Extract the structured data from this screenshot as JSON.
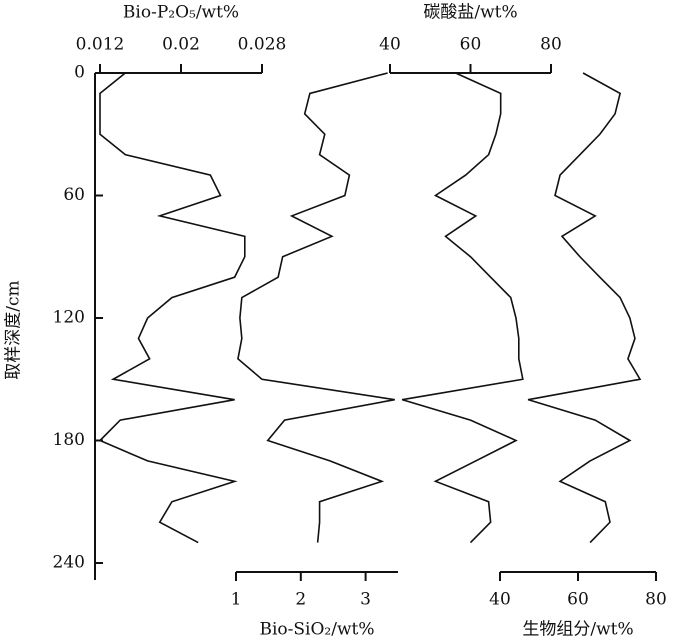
{
  "chart_data": {
    "type": "line",
    "ylabel": "取样深度/cm",
    "ylim": [
      0,
      240
    ],
    "yticks": [
      0,
      60,
      120,
      180,
      240
    ],
    "depth": [
      0,
      10,
      20,
      30,
      40,
      50,
      60,
      70,
      80,
      90,
      100,
      110,
      120,
      130,
      140,
      150,
      160,
      170,
      180,
      190,
      200,
      210,
      220,
      230
    ],
    "series": [
      {
        "name": "Bio-P₂O₅/wt%",
        "color": "#111111",
        "axis_position": "top",
        "xlim": [
          0.012,
          0.028
        ],
        "xticks": [
          0.012,
          0.02,
          0.028
        ],
        "values": [
          0.0145,
          0.012,
          0.012,
          0.012,
          0.0145,
          0.0229,
          0.0239,
          0.0179,
          0.0263,
          0.0263,
          0.0253,
          0.0191,
          0.0167,
          0.0158,
          0.0169,
          0.0133,
          0.0253,
          0.014,
          0.012,
          0.0167,
          0.0253,
          0.0191,
          0.0179,
          0.0217
        ]
      },
      {
        "name": "Bio-SiO₂/wt%",
        "color": "#111111",
        "axis_position": "bottom",
        "xlim": [
          1,
          3.5
        ],
        "xticks": [
          1,
          2,
          3
        ],
        "values": [
          3.34,
          2.14,
          2.06,
          2.37,
          2.29,
          2.75,
          2.68,
          1.86,
          2.48,
          1.72,
          1.65,
          1.09,
          1.06,
          1.09,
          1.03,
          1.4,
          3.45,
          1.75,
          1.49,
          2.45,
          3.25,
          2.29,
          2.29,
          2.26
        ]
      },
      {
        "name": "碳酸盐/wt%",
        "color": "#111111",
        "axis_position": "top",
        "xlim": [
          40,
          80
        ],
        "xticks": [
          40,
          60,
          80
        ],
        "values": [
          56.3,
          67.5,
          67.5,
          66.3,
          64.5,
          58.8,
          51.3,
          61.3,
          53.8,
          60,
          65,
          70,
          71.3,
          72,
          72,
          73,
          43,
          60,
          71.3,
          61.3,
          51.3,
          64.5,
          65,
          60
        ]
      },
      {
        "name": "生物组分/wt%",
        "color": "#111111",
        "axis_position": "bottom",
        "xlim": [
          40,
          80
        ],
        "xticks": [
          40,
          60,
          80
        ],
        "values": [
          61.3,
          70.8,
          69.5,
          65.6,
          60.5,
          55.4,
          54.1,
          64.4,
          55.9,
          60.5,
          65.6,
          70.8,
          73.3,
          74.6,
          72.8,
          75.9,
          47.2,
          64.4,
          73.3,
          63.1,
          55.4,
          67,
          68.2,
          63.1
        ]
      }
    ]
  }
}
